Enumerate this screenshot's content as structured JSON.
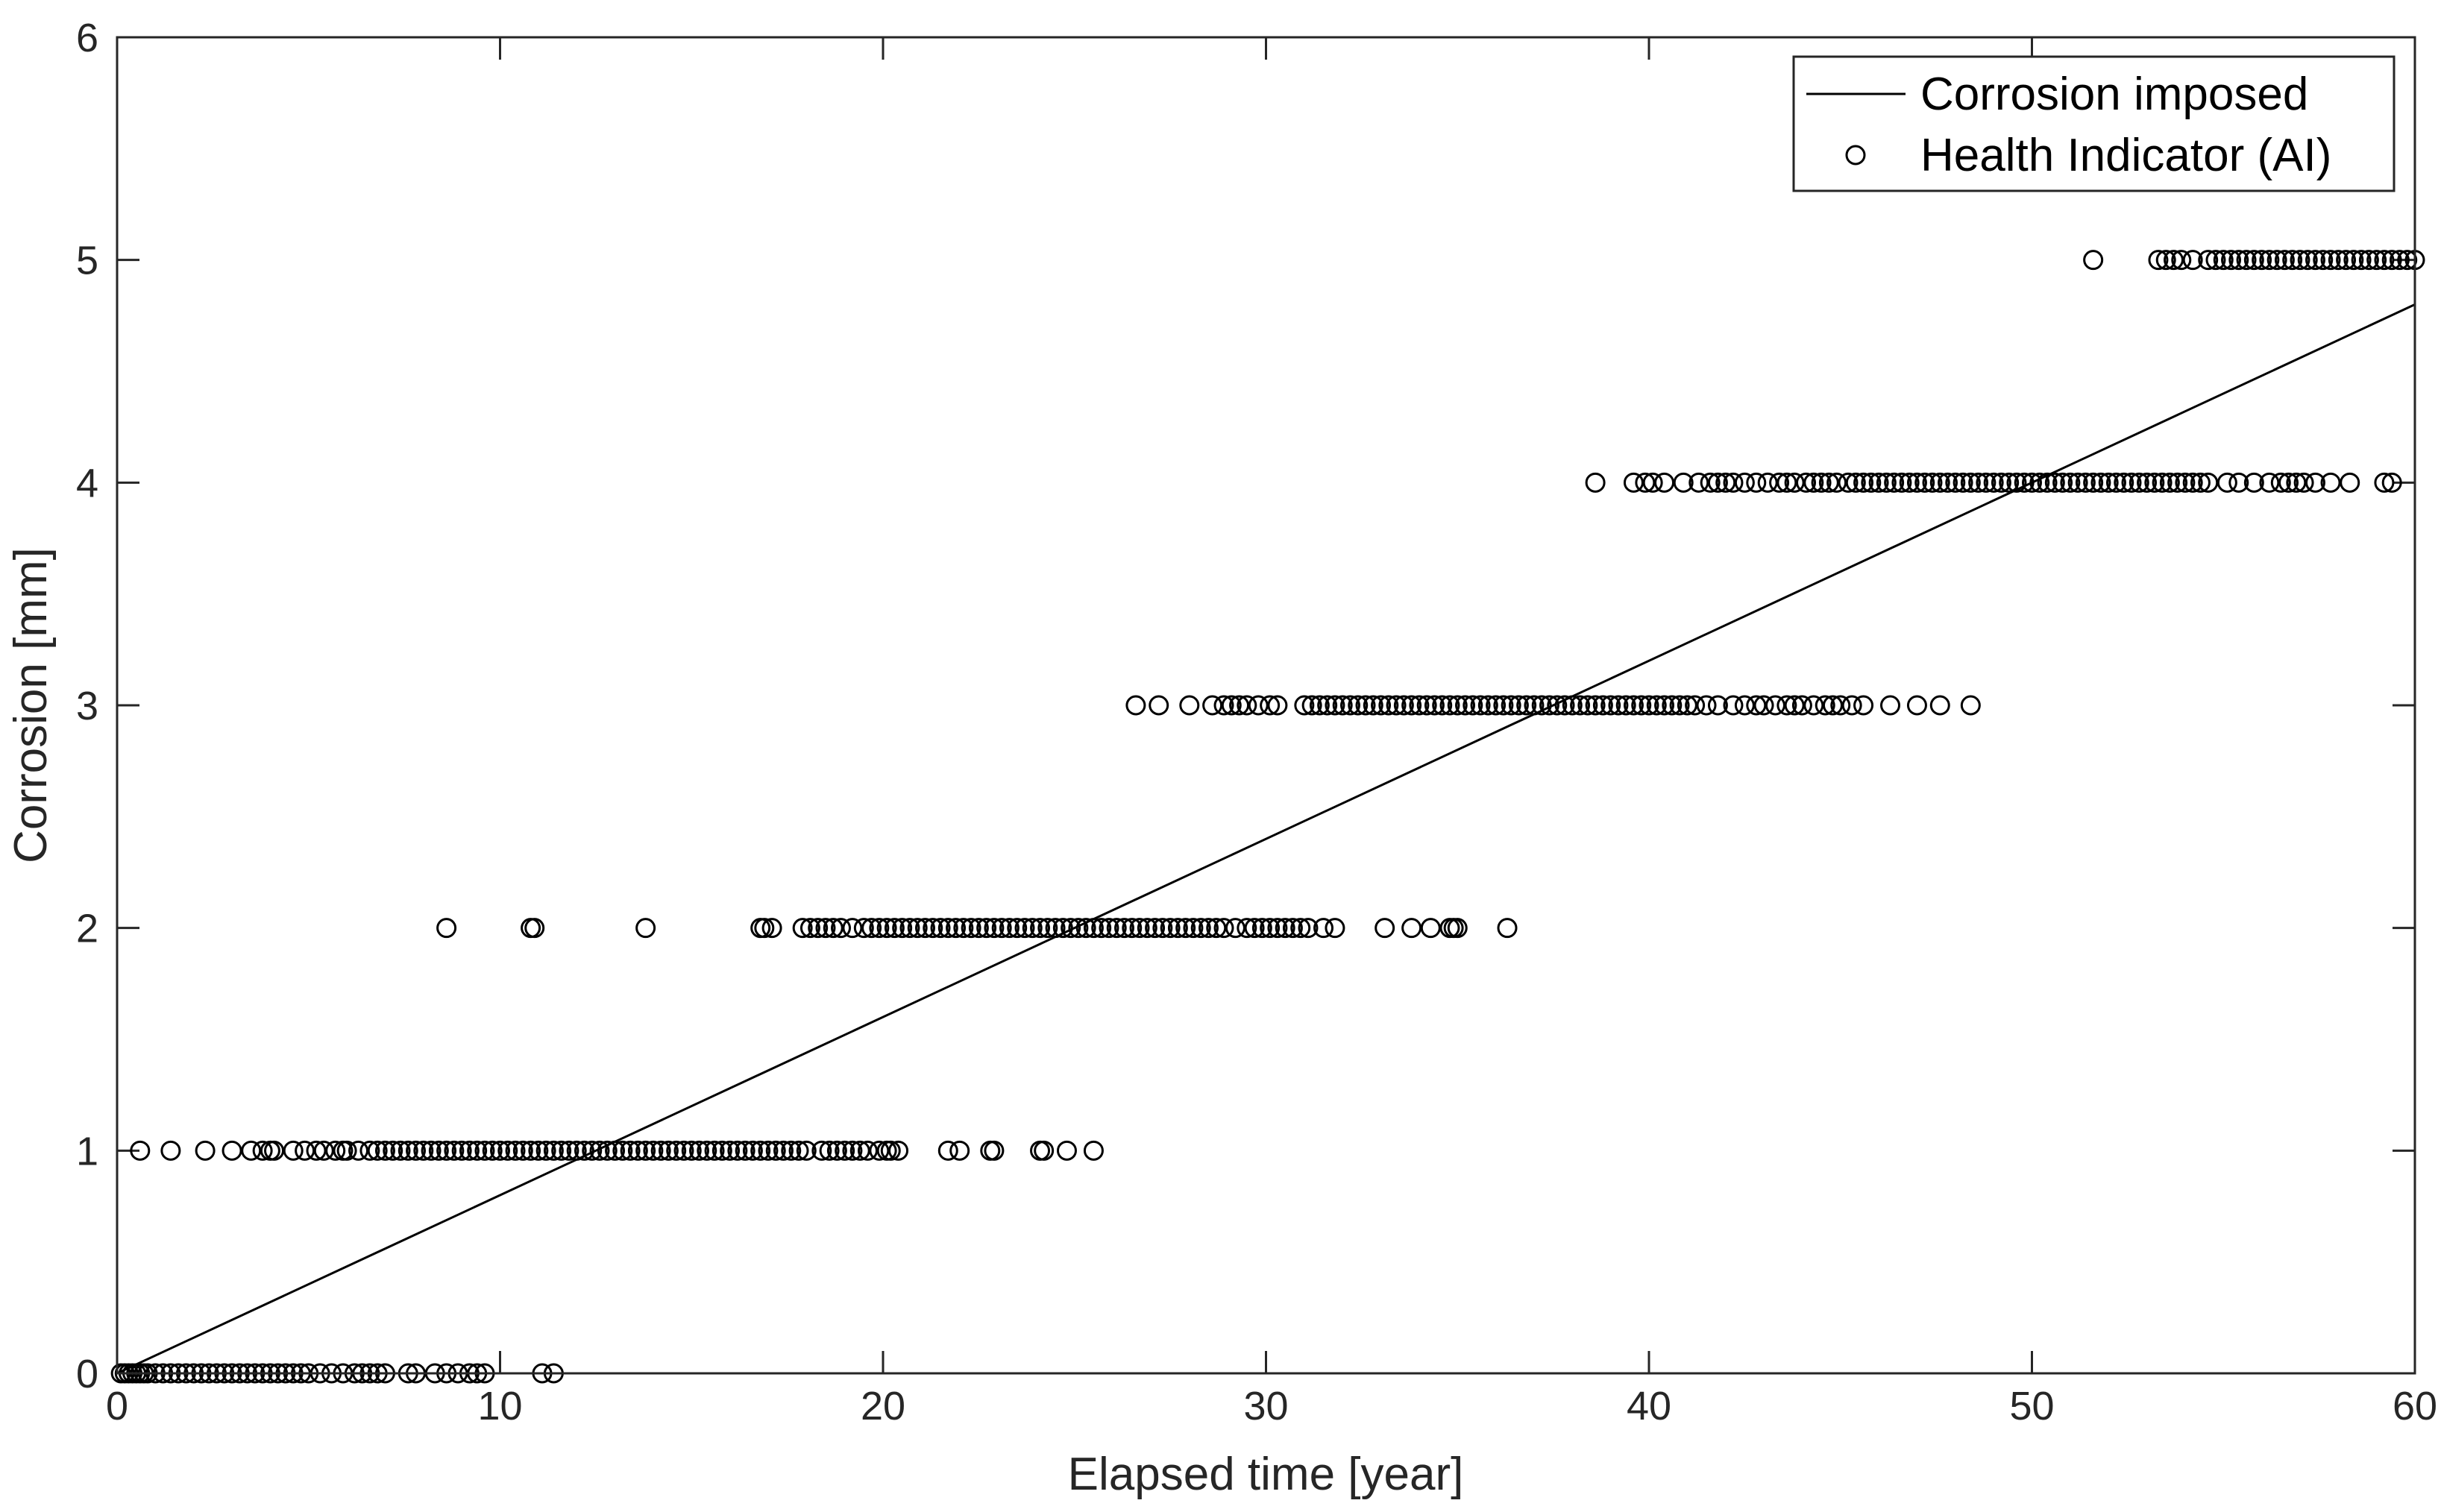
{
  "chart_data": {
    "type": "scatter",
    "title": "",
    "xlabel": "Elapsed time [year]",
    "ylabel": "Corrosion [mm]",
    "xlim": [
      0,
      60
    ],
    "ylim": [
      0,
      6
    ],
    "xticks": [
      0,
      10,
      20,
      30,
      40,
      50,
      60
    ],
    "yticks": [
      0,
      1,
      2,
      3,
      4,
      5,
      6
    ],
    "xtick_labels": [
      "0",
      "10",
      "20",
      "30",
      "40",
      "50",
      "60"
    ],
    "ytick_labels": [
      "0",
      "1",
      "2",
      "3",
      "4",
      "5",
      "6"
    ],
    "grid": false,
    "legend_position": "top-right",
    "legend": [
      "Corrosion imposed",
      "Health Indicator (AI)"
    ],
    "line_series": {
      "name": "Corrosion imposed",
      "color": "#000000",
      "x": [
        0,
        60
      ],
      "y": [
        0,
        4.8
      ]
    },
    "scatter_series": {
      "name": "Health Indicator (AI)",
      "color": "#000000",
      "levels": [
        {
          "y": 0,
          "x": [
            0.1,
            0.2,
            0.3,
            0.4,
            0.5,
            0.6,
            0.7,
            0.8,
            1.0,
            1.2,
            1.4,
            1.6,
            1.8,
            2.0,
            2.2,
            2.4,
            2.6,
            2.8,
            3.0,
            3.2,
            3.4,
            3.6,
            3.8,
            4.0,
            4.2,
            4.4,
            4.6,
            4.8,
            5.0,
            5.3,
            5.6,
            5.9,
            6.2,
            6.4,
            6.6,
            6.8,
            7.0,
            7.6,
            7.8,
            8.3,
            8.6,
            8.9,
            9.2,
            9.4,
            9.6,
            11.1,
            11.4
          ]
        },
        {
          "y": 1,
          "x": [
            0.6,
            1.4,
            2.3,
            3.0,
            3.5,
            3.8,
            4.0,
            4.1,
            4.6,
            4.9,
            5.2,
            5.4,
            5.7,
            5.9,
            6.0,
            6.3,
            6.6,
            6.8,
            7.0,
            7.2,
            7.4,
            7.6,
            7.8,
            8.0,
            8.2,
            8.4,
            8.6,
            8.8,
            9.0,
            9.2,
            9.4,
            9.6,
            9.8,
            10.0,
            10.2,
            10.4,
            10.6,
            10.8,
            11.0,
            11.2,
            11.4,
            11.6,
            11.8,
            12.0,
            12.2,
            12.4,
            12.6,
            12.8,
            13.0,
            13.2,
            13.4,
            13.6,
            13.8,
            14.0,
            14.2,
            14.4,
            14.6,
            14.8,
            15.0,
            15.2,
            15.4,
            15.6,
            15.8,
            16.0,
            16.2,
            16.4,
            16.6,
            16.8,
            17.0,
            17.2,
            17.4,
            17.6,
            17.8,
            18.0,
            18.4,
            18.6,
            18.8,
            19.0,
            19.2,
            19.4,
            19.6,
            19.9,
            20.1,
            20.2,
            20.4,
            21.7,
            22.0,
            22.8,
            22.9,
            24.1,
            24.2,
            24.8,
            25.5
          ]
        },
        {
          "y": 2,
          "x": [
            8.6,
            10.8,
            10.9,
            13.8,
            16.8,
            16.9,
            17.1,
            17.9,
            18.1,
            18.3,
            18.5,
            18.7,
            18.9,
            19.2,
            19.5,
            19.7,
            19.9,
            20.1,
            20.3,
            20.5,
            20.7,
            20.9,
            21.1,
            21.3,
            21.5,
            21.7,
            21.9,
            22.1,
            22.3,
            22.5,
            22.7,
            22.9,
            23.1,
            23.3,
            23.5,
            23.7,
            23.9,
            24.1,
            24.3,
            24.5,
            24.7,
            24.9,
            25.1,
            25.3,
            25.5,
            25.7,
            25.9,
            26.1,
            26.3,
            26.5,
            26.7,
            26.9,
            27.1,
            27.3,
            27.5,
            27.7,
            27.9,
            28.1,
            28.3,
            28.5,
            28.7,
            28.9,
            29.2,
            29.5,
            29.7,
            29.9,
            30.1,
            30.3,
            30.5,
            30.7,
            30.9,
            31.1,
            31.5,
            31.8,
            33.1,
            33.8,
            34.3,
            34.8,
            34.9,
            35.0,
            36.3
          ]
        },
        {
          "y": 3,
          "x": [
            26.6,
            27.2,
            28.0,
            28.6,
            28.9,
            29.1,
            29.3,
            29.5,
            29.8,
            30.1,
            30.3,
            31.0,
            31.2,
            31.4,
            31.6,
            31.8,
            32.0,
            32.2,
            32.4,
            32.6,
            32.8,
            33.0,
            33.2,
            33.4,
            33.6,
            33.8,
            34.0,
            34.2,
            34.4,
            34.6,
            34.8,
            35.0,
            35.2,
            35.4,
            35.6,
            35.8,
            36.0,
            36.2,
            36.4,
            36.6,
            36.8,
            37.0,
            37.2,
            37.4,
            37.6,
            37.8,
            38.0,
            38.2,
            38.4,
            38.6,
            38.8,
            39.0,
            39.2,
            39.4,
            39.6,
            39.8,
            40.0,
            40.2,
            40.4,
            40.6,
            40.8,
            41.0,
            41.2,
            41.5,
            41.8,
            42.2,
            42.5,
            42.8,
            43.0,
            43.3,
            43.6,
            43.8,
            44.0,
            44.3,
            44.6,
            44.8,
            45.0,
            45.3,
            45.6,
            46.3,
            47.0,
            47.6,
            48.4
          ]
        },
        {
          "y": 4,
          "x": [
            38.6,
            39.6,
            39.9,
            40.1,
            40.4,
            40.9,
            41.3,
            41.6,
            41.8,
            42.0,
            42.2,
            42.5,
            42.8,
            43.1,
            43.4,
            43.6,
            43.8,
            44.1,
            44.3,
            44.5,
            44.7,
            44.9,
            45.2,
            45.4,
            45.6,
            45.8,
            46.0,
            46.2,
            46.4,
            46.6,
            46.8,
            47.0,
            47.2,
            47.4,
            47.6,
            47.8,
            48.0,
            48.2,
            48.4,
            48.6,
            48.8,
            49.0,
            49.2,
            49.4,
            49.6,
            49.8,
            50.0,
            50.2,
            50.4,
            50.6,
            50.8,
            51.0,
            51.2,
            51.4,
            51.6,
            51.8,
            52.0,
            52.2,
            52.4,
            52.6,
            52.8,
            53.0,
            53.2,
            53.4,
            53.6,
            53.8,
            54.0,
            54.2,
            54.4,
            54.6,
            55.1,
            55.4,
            55.8,
            56.2,
            56.5,
            56.7,
            56.9,
            57.1,
            57.4,
            57.8,
            58.3,
            59.2,
            59.4
          ]
        },
        {
          "y": 5,
          "x": [
            51.6,
            53.3,
            53.5,
            53.7,
            53.9,
            54.2,
            54.6,
            54.8,
            55.0,
            55.2,
            55.4,
            55.6,
            55.8,
            56.0,
            56.2,
            56.4,
            56.6,
            56.8,
            57.0,
            57.2,
            57.4,
            57.6,
            57.8,
            58.0,
            58.2,
            58.4,
            58.6,
            58.8,
            59.0,
            59.2,
            59.4,
            59.6,
            59.8,
            60.0
          ]
        }
      ]
    }
  }
}
